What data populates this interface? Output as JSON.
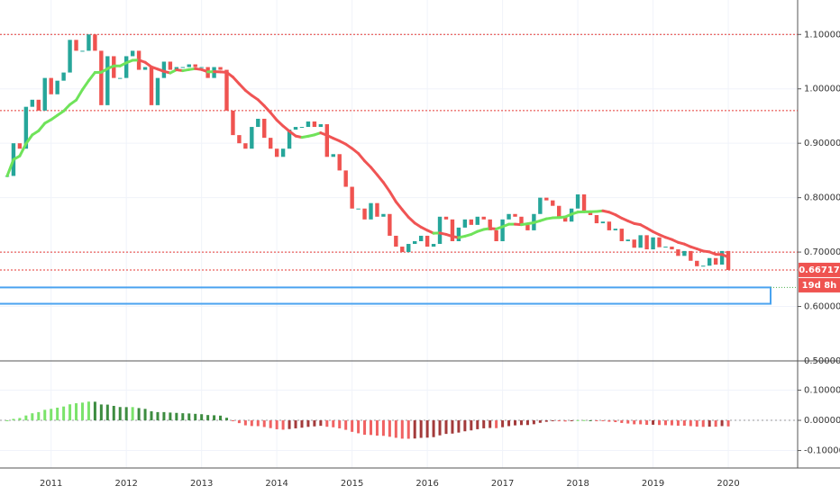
{
  "chart_data": {
    "type": "candlestick",
    "categories": [
      null,
      null,
      null,
      null,
      null,
      null,
      null,
      "2011",
      null,
      null,
      null,
      null,
      null,
      null,
      null,
      null,
      null,
      null,
      null,
      "2012",
      null,
      null,
      null,
      null,
      null,
      null,
      null,
      null,
      null,
      null,
      null,
      "2013",
      null,
      null,
      null,
      null,
      null,
      null,
      null,
      null,
      null,
      null,
      null,
      "2014",
      null,
      null,
      null,
      null,
      null,
      null,
      null,
      null,
      null,
      null,
      null,
      "2015",
      null,
      null,
      null,
      null,
      null,
      null,
      null,
      null,
      null,
      null,
      null,
      "2016",
      null,
      null,
      null,
      null,
      null,
      null,
      null,
      null,
      null,
      null,
      null,
      "2017",
      null,
      null,
      null,
      null,
      null,
      null,
      null,
      null,
      null,
      null,
      null,
      "2018",
      null,
      null,
      null,
      null,
      null,
      null,
      null,
      null,
      null,
      null,
      null,
      "2019",
      null,
      null,
      null,
      null,
      null,
      null,
      null,
      null,
      null,
      null,
      null,
      "2020"
    ],
    "values": [
      0.84,
      0.9,
      0.89,
      0.967,
      0.98,
      0.96,
      1.02,
      0.99,
      1.015,
      1.03,
      1.09,
      1.07,
      1.07,
      1.1,
      1.07,
      0.97,
      1.06,
      1.02,
      1.02,
      1.06,
      1.07,
      1.035,
      1.04,
      0.97,
      1.02,
      1.05,
      1.035,
      1.04,
      1.04,
      1.045,
      1.04,
      1.04,
      1.02,
      1.04,
      1.035,
      0.96,
      0.915,
      0.9,
      0.89,
      0.93,
      0.945,
      0.91,
      0.89,
      0.875,
      0.89,
      0.925,
      0.93,
      0.93,
      0.94,
      0.93,
      0.935,
      0.875,
      0.88,
      0.85,
      0.82,
      0.78,
      0.78,
      0.76,
      0.79,
      0.765,
      0.77,
      0.73,
      0.71,
      0.7,
      0.715,
      0.72,
      0.73,
      0.71,
      0.715,
      0.765,
      0.76,
      0.72,
      0.745,
      0.76,
      0.75,
      0.765,
      0.76,
      0.74,
      0.72,
      0.76,
      0.77,
      0.765,
      0.75,
      0.74,
      0.77,
      0.8,
      0.795,
      0.785,
      0.765,
      0.756,
      0.78,
      0.806,
      0.776,
      0.768,
      0.753,
      0.756,
      0.74,
      0.743,
      0.72,
      0.723,
      0.708,
      0.731,
      0.705,
      0.727,
      0.709,
      0.71,
      0.705,
      0.693,
      0.702,
      0.684,
      0.674,
      0.675,
      0.689,
      0.677,
      0.702,
      0.667
    ],
    "ylim": [
      0.5,
      1.1633
    ],
    "yticks": [
      {
        "value": 1.1,
        "label": "1.10000"
      },
      {
        "value": 1.0,
        "label": "1.00000"
      },
      {
        "value": 0.9,
        "label": "0.90000"
      },
      {
        "value": 0.8,
        "label": "0.80000"
      },
      {
        "value": 0.7,
        "label": "0.70000"
      },
      {
        "value": 0.6,
        "label": "0.60000"
      },
      {
        "value": 0.5,
        "label": "0.50000"
      }
    ],
    "levels": [
      1.1,
      0.96,
      0.7,
      0.667
    ],
    "zone": [
      0.605,
      0.635
    ],
    "last_price": {
      "value": 0.66717,
      "label": "0.66717"
    },
    "countdown": "19d 8h",
    "up_color": "#26a69a",
    "down_color": "#ef5350",
    "osc_ylim": [
      -0.158,
      0.197
    ],
    "osc_yticks": [
      {
        "value": 0.1,
        "label": "0.10000"
      },
      {
        "value": 0,
        "label": "0.00000"
      },
      {
        "value": -0.1,
        "label": "-0.10000"
      }
    ],
    "grid": true
  }
}
